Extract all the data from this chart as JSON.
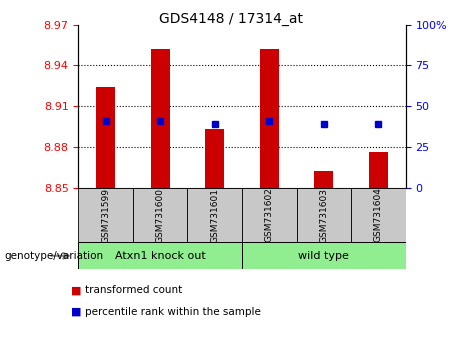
{
  "title": "GDS4148 / 17314_at",
  "samples": [
    "GSM731599",
    "GSM731600",
    "GSM731601",
    "GSM731602",
    "GSM731603",
    "GSM731604"
  ],
  "red_values": [
    8.924,
    8.952,
    8.893,
    8.952,
    8.862,
    8.876
  ],
  "blue_values": [
    8.899,
    8.899,
    8.897,
    8.899,
    8.897,
    8.897
  ],
  "ymin": 8.85,
  "ymax": 8.97,
  "yticks": [
    8.85,
    8.88,
    8.91,
    8.94,
    8.97
  ],
  "ytick_labels": [
    "8.85",
    "8.88",
    "8.91",
    "8.94",
    "8.97"
  ],
  "right_yticks": [
    0,
    25,
    50,
    75,
    100
  ],
  "right_ytick_labels": [
    "0",
    "25",
    "50",
    "75",
    "100%"
  ],
  "grid_lines": [
    8.88,
    8.91,
    8.94
  ],
  "group1_label": "Atxn1 knock out",
  "group2_label": "wild type",
  "group1_indices": [
    0,
    1,
    2
  ],
  "group2_indices": [
    3,
    4,
    5
  ],
  "group_color": "#90EE90",
  "bar_color": "#CC0000",
  "dot_color": "#0000CC",
  "base_value": 8.85,
  "genotype_label": "genotype/variation",
  "legend_red": "transformed count",
  "legend_blue": "percentile rank within the sample",
  "tick_bg_color": "#C8C8C8",
  "bar_width": 0.35
}
